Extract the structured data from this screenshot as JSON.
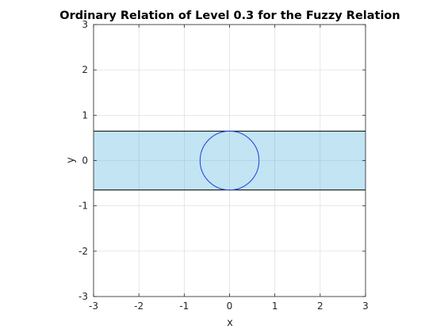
{
  "chart_data": {
    "type": "area",
    "title": "Ordinary Relation of Level 0.3 for the Fuzzy Relation",
    "xlabel": "x",
    "ylabel": "y",
    "xlim": [
      -3,
      3
    ],
    "ylim": [
      -3,
      3
    ],
    "xticks": [
      "-3",
      "-2",
      "-1",
      "0",
      "1",
      "2",
      "3"
    ],
    "yticks": [
      "-3",
      "-2",
      "-1",
      "0",
      "1",
      "2",
      "3"
    ],
    "grid": true,
    "band": {
      "y_min": -0.65,
      "y_max": 0.65,
      "x_range": [
        -3,
        3
      ],
      "fill": "#bfe3f2",
      "edge": "#000000"
    },
    "circle": {
      "center": [
        0,
        0
      ],
      "radius": 0.65,
      "color": "#1f3fd8"
    }
  }
}
